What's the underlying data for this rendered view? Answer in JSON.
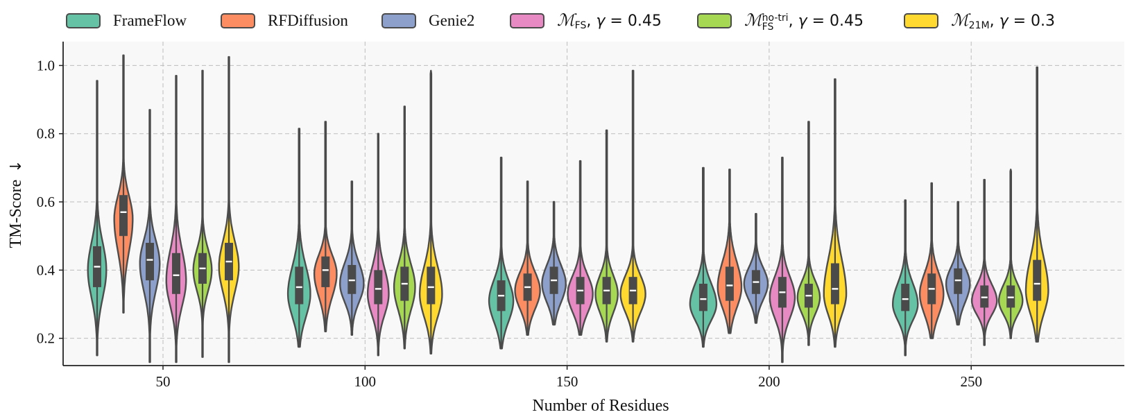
{
  "chart_data": {
    "type": "violin",
    "title": "",
    "xlabel": "Number of Residues",
    "ylabel": "TM-Score",
    "ylabel_arrow": "↓",
    "ylim": [
      0.12,
      1.07
    ],
    "yticks": [
      0.2,
      0.4,
      0.6,
      0.8,
      1.0
    ],
    "ytick_labels": [
      "0.2",
      "0.4",
      "0.6",
      "0.8",
      "1.0"
    ],
    "categories": [
      "50",
      "100",
      "150",
      "200",
      "250"
    ],
    "grid": true,
    "legend_position": "top",
    "series": [
      {
        "name": "FrameFlow",
        "color": "#66c2a5",
        "stats": [
          {
            "min": 0.15,
            "q1": 0.35,
            "median": 0.41,
            "q3": 0.47,
            "max": 0.955,
            "mode": 0.4,
            "width": 0.7
          },
          {
            "min": 0.175,
            "q1": 0.3,
            "median": 0.35,
            "q3": 0.41,
            "max": 0.815,
            "mode": 0.33,
            "width": 0.85
          },
          {
            "min": 0.17,
            "q1": 0.28,
            "median": 0.325,
            "q3": 0.37,
            "max": 0.73,
            "mode": 0.31,
            "width": 0.92
          },
          {
            "min": 0.175,
            "q1": 0.28,
            "median": 0.315,
            "q3": 0.36,
            "max": 0.7,
            "mode": 0.3,
            "width": 1.0
          },
          {
            "min": 0.15,
            "q1": 0.28,
            "median": 0.315,
            "q3": 0.36,
            "max": 0.605,
            "mode": 0.3,
            "width": 0.95
          }
        ]
      },
      {
        "name": "RFDiffusion",
        "color": "#fc8d62",
        "stats": [
          {
            "min": 0.275,
            "q1": 0.5,
            "median": 0.57,
            "q3": 0.62,
            "max": 1.03,
            "mode": 0.55,
            "width": 0.7
          },
          {
            "min": 0.22,
            "q1": 0.35,
            "median": 0.4,
            "q3": 0.44,
            "max": 0.835,
            "mode": 0.39,
            "width": 0.85
          },
          {
            "min": 0.21,
            "q1": 0.31,
            "median": 0.35,
            "q3": 0.39,
            "max": 0.66,
            "mode": 0.34,
            "width": 0.95
          },
          {
            "min": 0.215,
            "q1": 0.31,
            "median": 0.355,
            "q3": 0.41,
            "max": 0.695,
            "mode": 0.35,
            "width": 0.9
          },
          {
            "min": 0.2,
            "q1": 0.3,
            "median": 0.345,
            "q3": 0.39,
            "max": 0.655,
            "mode": 0.33,
            "width": 0.9
          }
        ]
      },
      {
        "name": "Genie2",
        "color": "#8da0cb",
        "stats": [
          {
            "min": 0.13,
            "q1": 0.37,
            "median": 0.43,
            "q3": 0.48,
            "max": 0.87,
            "mode": 0.42,
            "width": 0.75
          },
          {
            "min": 0.21,
            "q1": 0.33,
            "median": 0.37,
            "q3": 0.415,
            "max": 0.66,
            "mode": 0.36,
            "width": 0.9
          },
          {
            "min": 0.24,
            "q1": 0.33,
            "median": 0.37,
            "q3": 0.41,
            "max": 0.6,
            "mode": 0.36,
            "width": 0.9
          },
          {
            "min": 0.245,
            "q1": 0.33,
            "median": 0.365,
            "q3": 0.4,
            "max": 0.565,
            "mode": 0.36,
            "width": 0.9
          },
          {
            "min": 0.24,
            "q1": 0.33,
            "median": 0.37,
            "q3": 0.405,
            "max": 0.6,
            "mode": 0.36,
            "width": 0.9
          }
        ]
      },
      {
        "name": "M_FS, gamma = 0.45",
        "color": "#e78ac3",
        "stats": [
          {
            "min": 0.13,
            "q1": 0.33,
            "median": 0.385,
            "q3": 0.45,
            "max": 0.97,
            "mode": 0.37,
            "width": 0.75
          },
          {
            "min": 0.15,
            "q1": 0.3,
            "median": 0.345,
            "q3": 0.4,
            "max": 0.8,
            "mode": 0.33,
            "width": 0.8
          },
          {
            "min": 0.21,
            "q1": 0.3,
            "median": 0.34,
            "q3": 0.38,
            "max": 0.72,
            "mode": 0.33,
            "width": 0.95
          },
          {
            "min": 0.13,
            "q1": 0.29,
            "median": 0.335,
            "q3": 0.38,
            "max": 0.73,
            "mode": 0.32,
            "width": 0.95
          },
          {
            "min": 0.18,
            "q1": 0.29,
            "median": 0.32,
            "q3": 0.355,
            "max": 0.665,
            "mode": 0.31,
            "width": 0.95
          }
        ]
      },
      {
        "name": "M_FS^no-tri, gamma = 0.45",
        "color": "#a6d854",
        "stats": [
          {
            "min": 0.145,
            "q1": 0.36,
            "median": 0.405,
            "q3": 0.45,
            "max": 0.985,
            "mode": 0.4,
            "width": 0.7
          },
          {
            "min": 0.17,
            "q1": 0.31,
            "median": 0.36,
            "q3": 0.41,
            "max": 0.88,
            "mode": 0.35,
            "width": 0.8
          },
          {
            "min": 0.19,
            "q1": 0.3,
            "median": 0.34,
            "q3": 0.38,
            "max": 0.81,
            "mode": 0.33,
            "width": 0.85
          },
          {
            "min": 0.18,
            "q1": 0.29,
            "median": 0.325,
            "q3": 0.36,
            "max": 0.835,
            "mode": 0.32,
            "width": 0.85
          },
          {
            "min": 0.2,
            "q1": 0.29,
            "median": 0.32,
            "q3": 0.355,
            "max": 0.695,
            "mode": 0.31,
            "width": 0.9
          }
        ]
      },
      {
        "name": "M_21M, gamma = 0.3",
        "color": "#ffd92f",
        "stats": [
          {
            "min": 0.13,
            "q1": 0.37,
            "median": 0.425,
            "q3": 0.48,
            "max": 1.025,
            "mode": 0.41,
            "width": 0.75
          },
          {
            "min": 0.155,
            "q1": 0.3,
            "median": 0.35,
            "q3": 0.41,
            "max": 0.985,
            "mode": 0.33,
            "width": 0.85
          },
          {
            "min": 0.19,
            "q1": 0.3,
            "median": 0.34,
            "q3": 0.38,
            "max": 0.985,
            "mode": 0.33,
            "width": 0.95
          },
          {
            "min": 0.175,
            "q1": 0.3,
            "median": 0.345,
            "q3": 0.42,
            "max": 0.96,
            "mode": 0.33,
            "width": 0.85
          },
          {
            "min": 0.19,
            "q1": 0.31,
            "median": 0.36,
            "q3": 0.43,
            "max": 0.995,
            "mode": 0.34,
            "width": 0.85
          }
        ]
      }
    ]
  },
  "legend": {
    "frameflow": "FrameFlow",
    "rfdiffusion": "RFDiffusion",
    "genie2": "Genie2",
    "mfs": {
      "symbol": "ℳ",
      "sub": "FS",
      "rest": ", ",
      "gamma": "γ",
      "eq": " = 0.45"
    },
    "mfs_notri": {
      "symbol": "ℳ",
      "sup": "no-tri",
      "sub": "FS",
      "rest": ", ",
      "gamma": "γ",
      "eq": " = 0.45"
    },
    "m21m": {
      "symbol": "ℳ",
      "sub": "21M",
      "rest": ", ",
      "gamma": "γ",
      "eq": " = 0.3"
    }
  },
  "colors": {
    "plot_background": "#f8f8f8",
    "grid": "#bdbdbd",
    "outline": "#4d4d4d",
    "box": "#4a4a4a",
    "median": "#ffffff"
  }
}
